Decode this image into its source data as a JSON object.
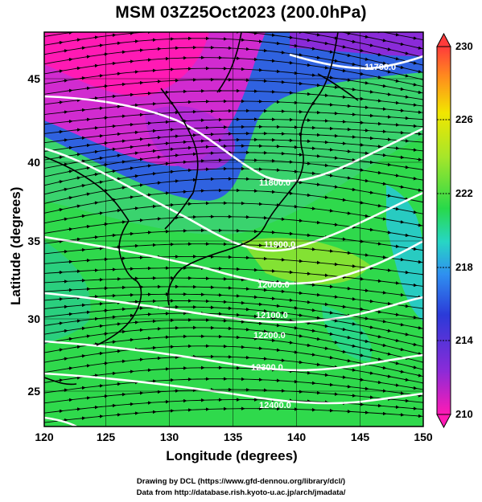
{
  "title": "MSM 03Z25Oct2023 (200.0hPa)",
  "xlabel": "Longitude (degrees)",
  "ylabel": "Latitude  (degrees)",
  "x_ticks": [
    "120",
    "125",
    "130",
    "135",
    "140",
    "145",
    "150"
  ],
  "y_ticks": [
    "25",
    "30",
    "35",
    "40",
    "45"
  ],
  "colorbar": {
    "min": 210,
    "max": 230,
    "tick_labels": [
      "230",
      "226",
      "222",
      "218",
      "214",
      "210"
    ],
    "colors": [
      "#ff3b3b",
      "#ff8a1e",
      "#f2e600",
      "#a6e62a",
      "#28d94a",
      "#27d6c4",
      "#2f8ff0",
      "#2b3ad8",
      "#8a2bd8",
      "#ff1ab4"
    ]
  },
  "contours": [
    {
      "label": "11700.0"
    },
    {
      "label": "11800.0"
    },
    {
      "label": "11900.0"
    },
    {
      "label": "12000.0"
    },
    {
      "label": "12100.0"
    },
    {
      "label": "12200.0"
    },
    {
      "label": "12300.0"
    },
    {
      "label": "12400.0"
    }
  ],
  "credits": [
    "Drawing by DCL (https://www.gfd-dennou.org/library/dcl/)",
    "Data from http://database.rish.kyoto-u.ac.jp/arch/jmadata/"
  ]
}
